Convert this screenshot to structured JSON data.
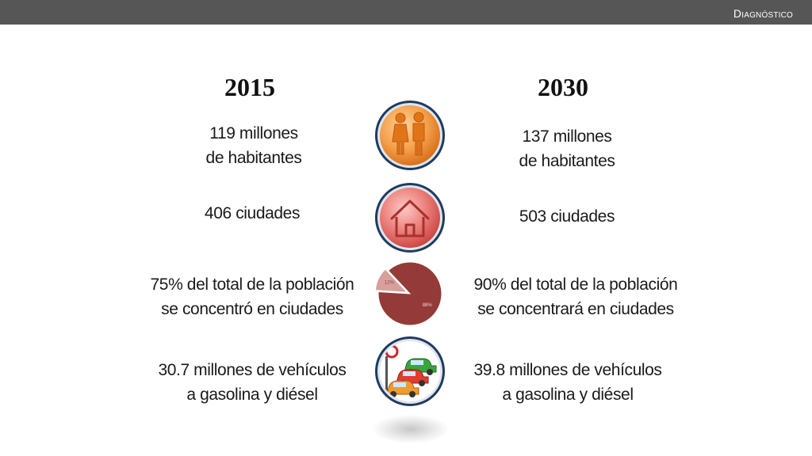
{
  "header": {
    "title": "Diagnóstico"
  },
  "columns": {
    "left": {
      "year": "2015",
      "population": [
        "119 millones",
        "de habitantes"
      ],
      "cities": "406 ciudades",
      "urban_share": [
        "75% del total de la población",
        "se concentró en ciudades"
      ],
      "vehicles": [
        "30.7 millones de vehículos",
        "a gasolina y diésel"
      ]
    },
    "right": {
      "year": "2030",
      "population": [
        "137 millones",
        "de habitantes"
      ],
      "cities": "503 ciudades",
      "urban_share": [
        "90% del total de la población",
        "se concentrará en ciudades"
      ],
      "vehicles": [
        "39.8 millones de vehículos",
        "a gasolina y diésel"
      ]
    }
  },
  "icons": {
    "population": "people-icon",
    "cities": "house-icon",
    "vehicles": "traffic-cars-icon"
  },
  "chart_data": {
    "type": "pie",
    "categories": [
      "",
      ""
    ],
    "values": [
      88,
      12
    ],
    "labels": [
      "88%",
      "12%"
    ],
    "colors": [
      "#943a38",
      "#d99f9c"
    ]
  },
  "colors": {
    "topbar": "#565656",
    "people_orange": "#f2882c",
    "house_red": "#e06a68",
    "ring_blue": "#1f3b5e"
  }
}
